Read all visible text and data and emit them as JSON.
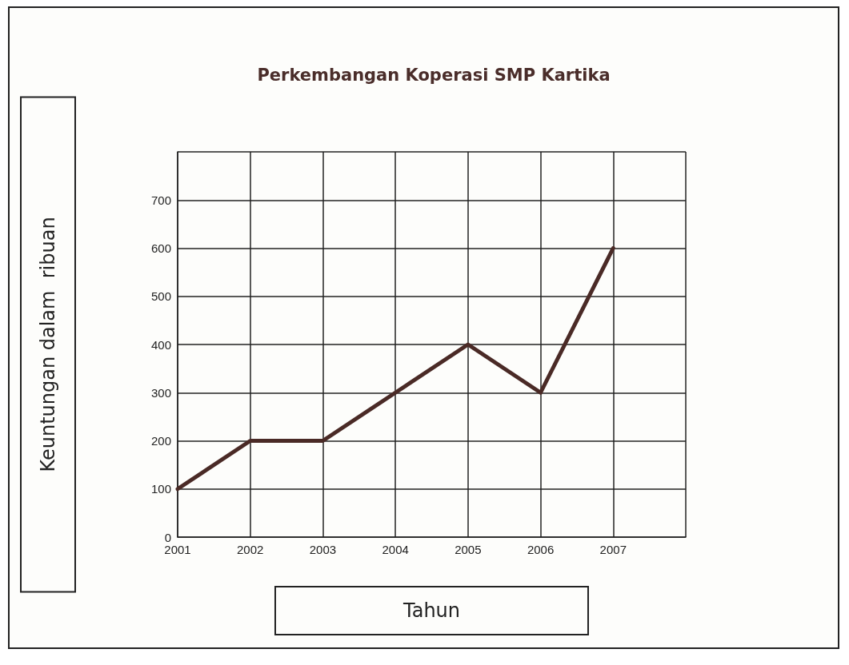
{
  "chart_data": {
    "type": "line",
    "title": "Perkembangan Koperasi SMP Kartika",
    "xlabel": "Tahun",
    "ylabel": "Keuntungan dalam  ribuan",
    "x": [
      2001,
      2002,
      2003,
      2004,
      2005,
      2006,
      2007
    ],
    "series": [
      {
        "color": "#4a2a26",
        "values": [
          100,
          200,
          200,
          300,
          400,
          300,
          600
        ]
      }
    ],
    "xlim": [
      2001,
      2008
    ],
    "xticks": [
      2001,
      2002,
      2003,
      2004,
      2005,
      2006,
      2007,
      {
        "value": 2008,
        "label": null
      }
    ],
    "ylim": [
      0,
      800
    ],
    "yticks": [
      0,
      100,
      200,
      300,
      400,
      500,
      600,
      700,
      {
        "value": 800,
        "label": null
      }
    ],
    "grid": true,
    "marker": "none",
    "line_style": "solid"
  }
}
